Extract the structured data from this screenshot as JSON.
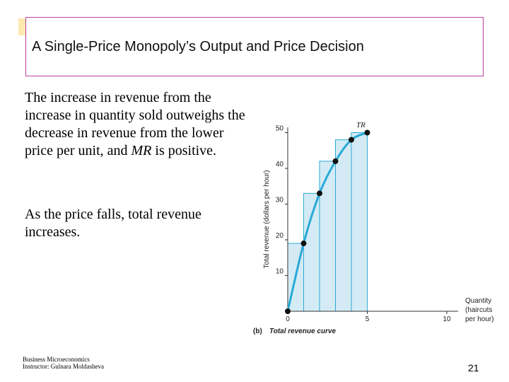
{
  "title": "A Single-Price Monopoly’s  Output and Price Decision",
  "paragraphs": [
    {
      "text": "The increase in revenue from the increase in quantity sold outweighs the decrease in revenue from the lower price per unit, and ",
      "italic": "MR",
      "tail": " is positive."
    },
    {
      "text": "As the price falls, total revenue increases."
    }
  ],
  "footer": {
    "line1": "Business Microeconomics",
    "line2": "Instructor: Gulnara Moldasheva"
  },
  "page_number": "21",
  "diagram": {
    "ylabel": "Total revenue (dollars per hour)",
    "xlabel_lines": [
      "Quantity",
      "(haircuts",
      "per hour)"
    ],
    "curve_label": "TR",
    "caption_tag": "(b)",
    "caption": "Total revenue curve",
    "x_ticks": [
      "0",
      "5",
      "10"
    ],
    "y_ticks": [
      "10",
      "20",
      "30",
      "40",
      "50"
    ],
    "points": [
      [
        0,
        0
      ],
      [
        1,
        19
      ],
      [
        2,
        33
      ],
      [
        3,
        42
      ],
      [
        4,
        48
      ],
      [
        5,
        50
      ]
    ],
    "colors": {
      "curve": "#2aa9d6",
      "fill": "#d4ebf5",
      "point": "#111111"
    }
  }
}
